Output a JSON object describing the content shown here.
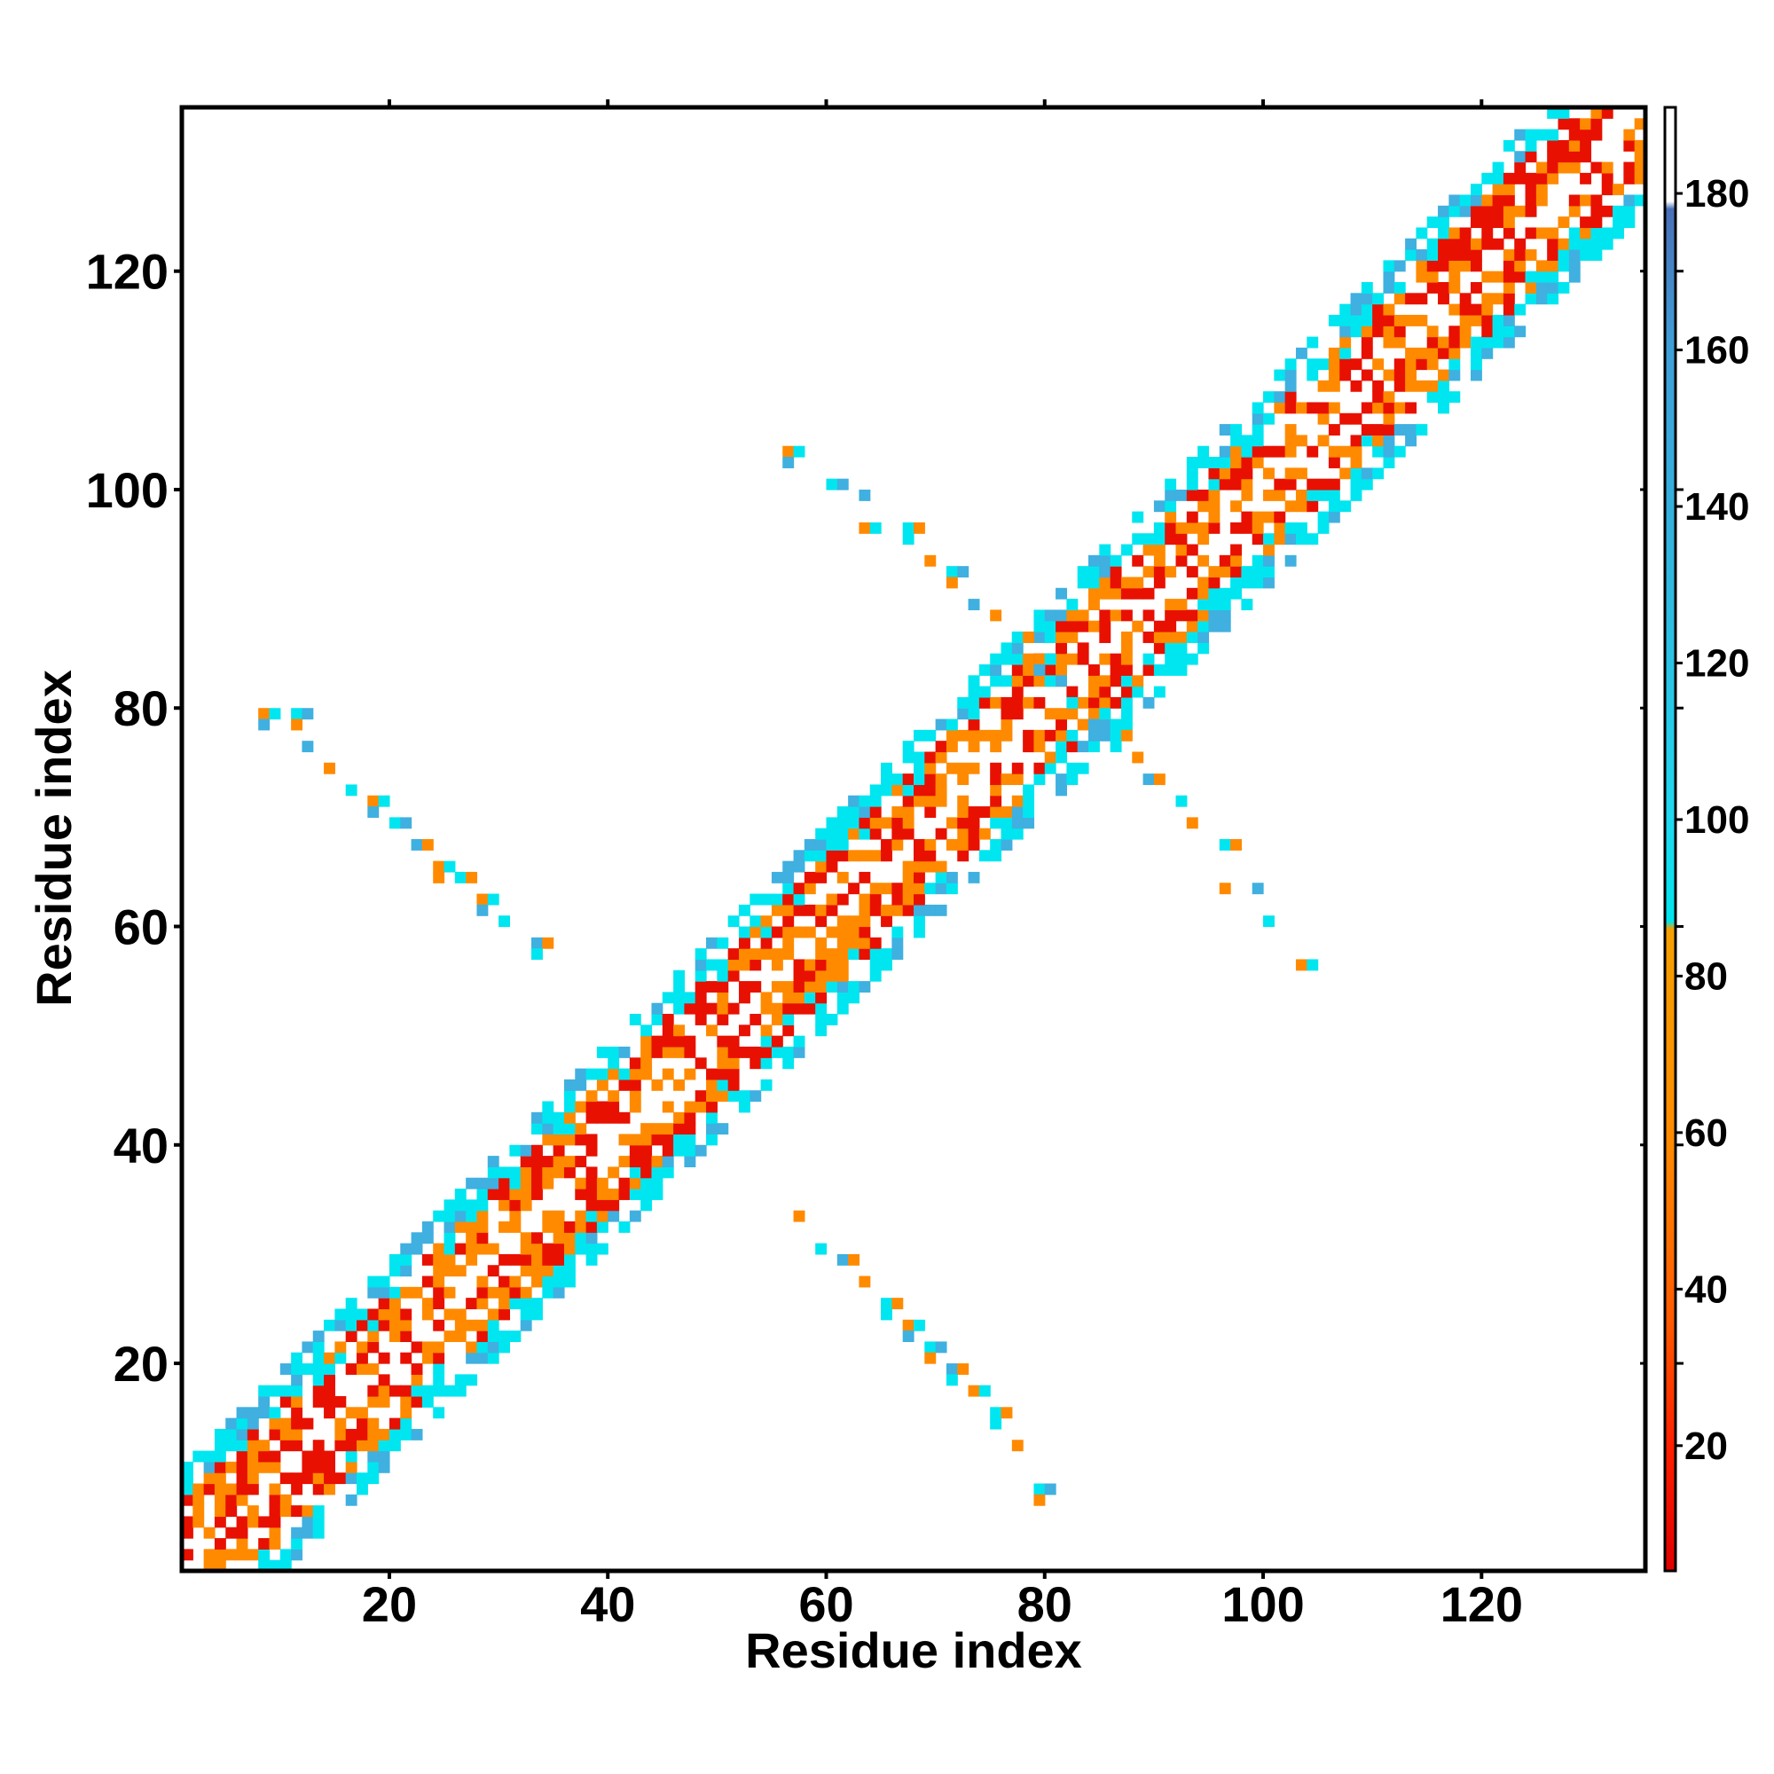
{
  "chart_data": {
    "type": "heatmap",
    "title": "",
    "xlabel": "Residue index",
    "ylabel": "Residue index",
    "xlim": [
      1,
      135
    ],
    "ylim": [
      1,
      135
    ],
    "x_ticks": [
      "20",
      "40",
      "60",
      "80",
      "100",
      "120"
    ],
    "y_ticks": [
      "20",
      "40",
      "60",
      "80",
      "100",
      "120"
    ],
    "colorbar": {
      "ticks": [
        "20",
        "40",
        "60",
        "80",
        "100",
        "120",
        "140",
        "160",
        "180"
      ],
      "range": [
        4,
        191
      ],
      "stops": [
        {
          "value": 4,
          "color": "#e00000"
        },
        {
          "value": 20,
          "color": "#ff2000"
        },
        {
          "value": 36,
          "color": "#ff5a00"
        },
        {
          "value": 60,
          "color": "#ff8c00"
        },
        {
          "value": 86,
          "color": "#f5a000"
        },
        {
          "value": 87,
          "color": "#00e5ee"
        },
        {
          "value": 100,
          "color": "#20d8f0"
        },
        {
          "value": 130,
          "color": "#30b8e0"
        },
        {
          "value": 160,
          "color": "#3fa0d8"
        },
        {
          "value": 178,
          "color": "#4a70b8"
        },
        {
          "value": 179,
          "color": "#ffffff"
        },
        {
          "value": 191,
          "color": "#ffffff"
        }
      ]
    },
    "band_colors": {
      "near": "#e81000",
      "mid": "#ff8a00",
      "far": "#00e6f0",
      "mix": "#3fb0e0"
    },
    "diagonal": {
      "start": 1,
      "end": 134,
      "half_width": 9
    },
    "contact_regions": [
      {
        "name": "hairpin-upper",
        "points": [
          [
            56,
            103
          ],
          [
            60,
            100
          ],
          [
            63,
            99
          ],
          [
            63,
            96
          ],
          [
            67,
            96
          ],
          [
            69,
            93
          ],
          [
            71,
            92
          ],
          [
            73,
            89
          ],
          [
            75,
            88
          ],
          [
            77,
            86
          ],
          [
            79,
            84
          ],
          [
            80,
            82
          ]
        ]
      },
      {
        "name": "hairpin-lower",
        "points": [
          [
            103,
            56
          ],
          [
            100,
            60
          ],
          [
            99,
            63
          ],
          [
            96,
            63
          ],
          [
            96,
            67
          ],
          [
            93,
            69
          ],
          [
            92,
            71
          ],
          [
            89,
            73
          ],
          [
            88,
            75
          ],
          [
            86,
            77
          ],
          [
            84,
            79
          ],
          [
            82,
            80
          ]
        ]
      },
      {
        "name": "sheet-left",
        "points": [
          [
            8,
            79
          ],
          [
            11,
            79
          ],
          [
            12,
            76
          ],
          [
            14,
            74
          ],
          [
            16,
            72
          ],
          [
            18,
            71
          ],
          [
            20,
            69
          ],
          [
            22,
            67
          ],
          [
            24,
            65
          ],
          [
            26,
            64
          ],
          [
            28,
            62
          ],
          [
            30,
            60
          ],
          [
            33,
            58
          ]
        ]
      },
      {
        "name": "sheet-right",
        "points": [
          [
            57,
            33
          ],
          [
            59,
            30
          ],
          [
            61,
            29
          ],
          [
            63,
            27
          ],
          [
            65,
            25
          ],
          [
            67,
            23
          ],
          [
            69,
            21
          ],
          [
            71,
            19
          ],
          [
            73,
            17
          ],
          [
            75,
            15
          ],
          [
            77,
            12
          ],
          [
            79,
            8
          ]
        ]
      }
    ]
  }
}
